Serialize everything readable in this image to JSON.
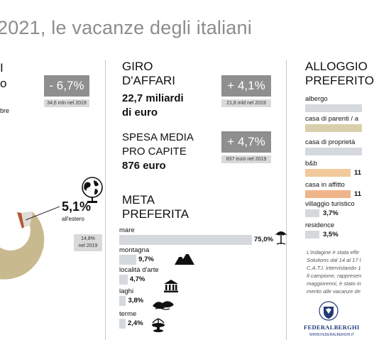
{
  "title": "2021, le vacanze degli italiani",
  "left": {
    "heading_line1": "I",
    "heading_line2": "o",
    "change_badge": "- 6,7%",
    "change_note": "34,6 mln nel 2019",
    "fragment": "bre",
    "abroad_value": "5,1%",
    "abroad_label": "all'estero",
    "abroad_note": "14,8%\nnel 2019"
  },
  "donut": {
    "abroad_share": 5.1,
    "colors": {
      "main": "#c8b98f",
      "abroad": "#e0ddd6",
      "accent": "#b4572e"
    }
  },
  "giro": {
    "heading": "GIRO\nD'AFFARI",
    "value_line1": "22,7 miliardi",
    "value_line2": "di euro",
    "badge": "+ 4,1%",
    "note": "21,8 mld nel 2019"
  },
  "spesa": {
    "heading": "SPESA MEDIA\nPRO CAPITE",
    "value": "876 euro",
    "badge": "+ 4,7%",
    "note": "837 euro nel 2019"
  },
  "meta": {
    "heading": "META\nPREFERITA",
    "items": [
      {
        "label": "mare",
        "value": "75,0%",
        "pct": 75.0,
        "icon": "beach-umbrella-icon"
      },
      {
        "label": "montagna",
        "value": "9,7%",
        "pct": 9.7,
        "icon": "mountain-icon"
      },
      {
        "label": "località d'arte",
        "value": "4,7%",
        "pct": 4.7,
        "icon": "temple-icon"
      },
      {
        "label": "laghi",
        "value": "3,8%",
        "pct": 3.8,
        "icon": "lake-icon"
      },
      {
        "label": "terme",
        "value": "2,4%",
        "pct": 2.4,
        "icon": "spa-icon"
      }
    ]
  },
  "alloggio": {
    "heading": "ALLOGGIO\nPREFERITO",
    "items": [
      {
        "label": "albergo",
        "value": "",
        "color": "#d5d8dc"
      },
      {
        "label": "casa di parenti / a",
        "value": "",
        "color": "#d9cfad"
      },
      {
        "label": "casa di proprietà",
        "value": "",
        "color": "#d5d8dc"
      },
      {
        "label": "b&b",
        "value": "11",
        "color": "#f2c99a"
      },
      {
        "label": "casa in affitto",
        "value": "11",
        "color": "#f0b48a"
      },
      {
        "label": "villaggio turistico",
        "value": "3,7%",
        "color": "#d5d8dc"
      },
      {
        "label": "residence",
        "value": "3,5%",
        "color": "#d5d8dc"
      }
    ],
    "footnote": [
      "L'indagine è stata effe",
      "Solutions dal 14 al 17 l",
      "C.A.T.I. intervistando 1",
      "Il campione, rappresen",
      "maggiorenni, è stato in",
      "merito alle vacanze de"
    ],
    "logo_text": "FEDERALBERGHI",
    "logo_url": "WWW.FEDERALBERGHI.IT"
  }
}
